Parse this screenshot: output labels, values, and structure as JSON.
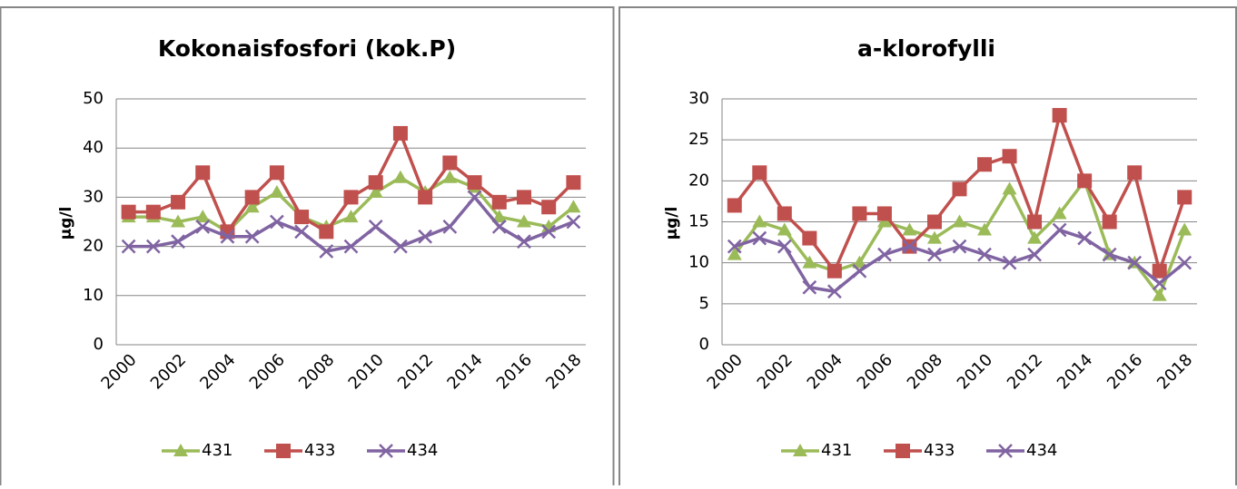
{
  "chart_data": [
    {
      "type": "line",
      "title": "Kokonaisfosfori (kok.P)",
      "y_label": "µg/l",
      "categories": [
        "2000",
        null,
        "2002",
        null,
        "2004",
        null,
        "2006",
        null,
        "2008",
        null,
        "2010",
        null,
        "2012",
        null,
        "2014",
        null,
        "2016",
        null,
        "2018"
      ],
      "series": [
        {
          "name": "431",
          "color": "#9bbb59",
          "marker": "triangle",
          "values": [
            26,
            26,
            25,
            26,
            23,
            28,
            31,
            26,
            24,
            26,
            31,
            34,
            31,
            34,
            32,
            26,
            25,
            24,
            28
          ]
        },
        {
          "name": "433",
          "color": "#c0504d",
          "marker": "square",
          "values": [
            27,
            27,
            29,
            35,
            23,
            30,
            35,
            26,
            23,
            30,
            33,
            43,
            30,
            37,
            33,
            29,
            30,
            28,
            33
          ]
        },
        {
          "name": "434",
          "color": "#8064a2",
          "marker": "x",
          "values": [
            20,
            20,
            21,
            24,
            22,
            22,
            25,
            23,
            19,
            20,
            24,
            20,
            22,
            24,
            30,
            24,
            21,
            23,
            25
          ]
        }
      ],
      "ylim": [
        0,
        50
      ],
      "yticks": [
        0,
        10,
        20,
        30,
        40,
        50
      ],
      "grid": true,
      "legend": "bottom"
    },
    {
      "type": "line",
      "title": "a-klorofylli",
      "y_label": "µg/l",
      "categories": [
        "2000",
        null,
        "2002",
        null,
        "2004",
        null,
        "2006",
        null,
        "2008",
        null,
        "2010",
        null,
        "2012",
        null,
        "2014",
        null,
        "2016",
        null,
        "2018"
      ],
      "series": [
        {
          "name": "431",
          "color": "#9bbb59",
          "marker": "triangle",
          "values": [
            11,
            15,
            14,
            10,
            9,
            10,
            15,
            14,
            13,
            15,
            14,
            19,
            13,
            16,
            20,
            11,
            10,
            6,
            14
          ]
        },
        {
          "name": "433",
          "color": "#c0504d",
          "marker": "square",
          "values": [
            17,
            21,
            16,
            13,
            9,
            16,
            16,
            12,
            15,
            19,
            22,
            23,
            15,
            28,
            20,
            15,
            21,
            9,
            18
          ]
        },
        {
          "name": "434",
          "color": "#8064a2",
          "marker": "x",
          "values": [
            12,
            13,
            12,
            7,
            6.5,
            9,
            11,
            12,
            11,
            12,
            11,
            10,
            11,
            14,
            13,
            11,
            10,
            7.5,
            10
          ]
        }
      ],
      "ylim": [
        0,
        30
      ],
      "yticks": [
        0,
        5,
        10,
        15,
        20,
        25,
        30
      ],
      "grid": true,
      "legend": "bottom"
    }
  ]
}
